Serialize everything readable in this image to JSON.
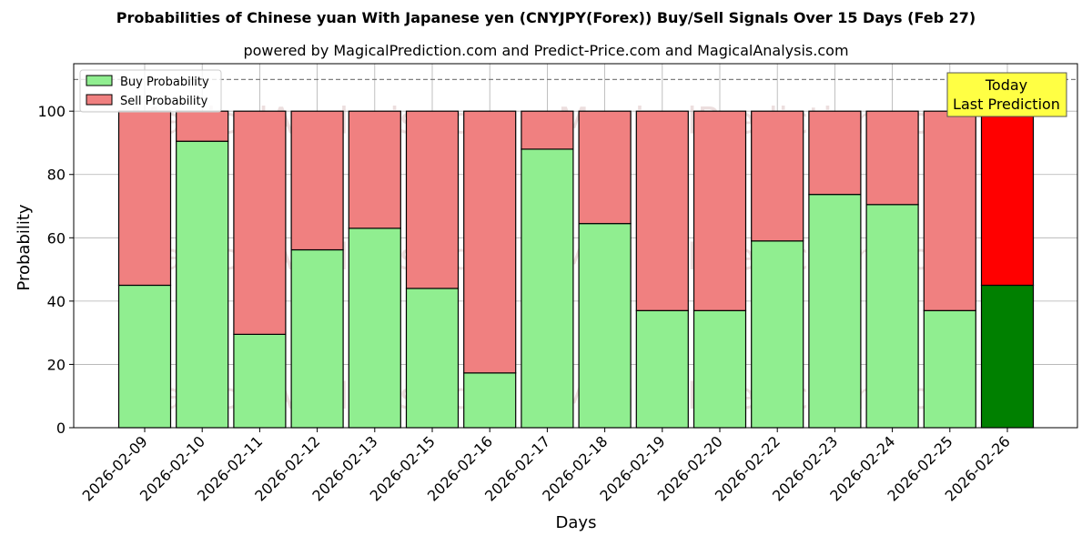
{
  "chart_data": {
    "type": "bar",
    "stacked": true,
    "title": "Probabilities of Chinese yuan With Japanese yen (CNYJPY(Forex)) Buy/Sell Signals Over 15 Days (Feb 27)",
    "subtitle": "powered by MagicalPrediction.com and Predict-Price.com and MagicalAnalysis.com",
    "xlabel": "Days",
    "ylabel": "Probability",
    "ylim": [
      0,
      115
    ],
    "yticks": [
      0,
      20,
      40,
      60,
      80,
      100
    ],
    "grid": true,
    "legend_position": "top-left",
    "reference_line": 110,
    "categories": [
      "2026-02-09",
      "2026-02-10",
      "2026-02-11",
      "2026-02-12",
      "2026-02-13",
      "2026-02-15",
      "2026-02-16",
      "2026-02-17",
      "2026-02-18",
      "2026-02-19",
      "2026-02-20",
      "2026-02-22",
      "2026-02-23",
      "2026-02-24",
      "2026-02-25",
      "2026-02-26"
    ],
    "series": [
      {
        "name": "Buy Probability",
        "color": "#90ee90",
        "values": [
          45,
          90.5,
          29.5,
          56.2,
          63,
          44,
          17.3,
          88,
          64.5,
          37,
          37,
          59,
          73.7,
          70.5,
          37,
          45
        ]
      },
      {
        "name": "Sell Probability",
        "color": "#f08080",
        "values": [
          55,
          9.5,
          70.5,
          43.8,
          37,
          56,
          82.7,
          12,
          35.5,
          63,
          63,
          41,
          26.3,
          29.5,
          63,
          55
        ]
      }
    ],
    "highlight": {
      "category": "2026-02-26",
      "buy_color": "#008000",
      "sell_color": "#ff0000"
    },
    "annotation": {
      "lines": [
        "Today",
        "Last Prediction"
      ],
      "background": "#ffff44"
    },
    "watermarks": [
      "MagicalAnalysis.com",
      "MagicalPrediction.com"
    ]
  }
}
